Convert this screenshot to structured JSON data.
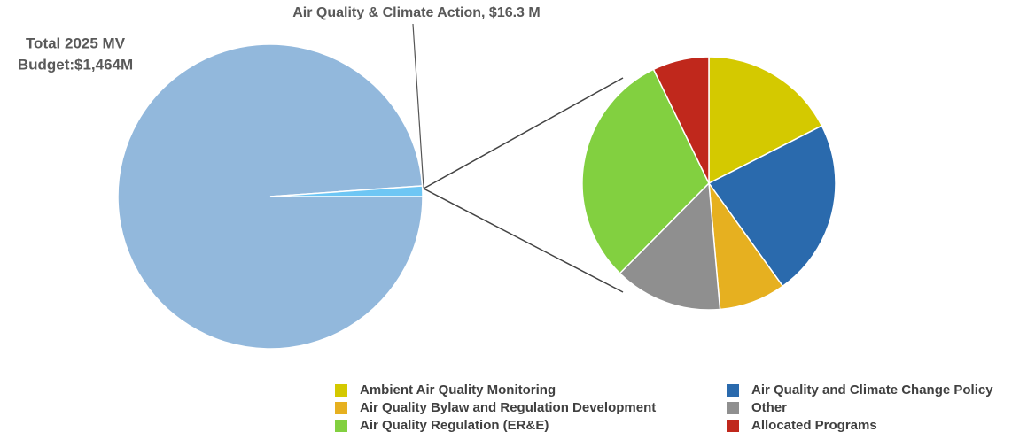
{
  "chart_data": [
    {
      "type": "pie",
      "annotation": [
        "Total 2025 MV",
        "Budget:$1,464M"
      ],
      "categories": [
        null,
        "Air Quality & Climate Action, $16.3 M"
      ],
      "values": [
        1447.7,
        16.3
      ],
      "colors": [
        "#92b8dc",
        "#6ec6f4"
      ]
    },
    {
      "type": "pie",
      "series": [
        {
          "name": "Ambient Air Quality Monitoring",
          "color": "#d4c900",
          "value": 17.5
        },
        {
          "name": "Air Quality and Climate Change Policy",
          "color": "#2a6aad",
          "value": 22.6
        },
        {
          "name": "Air Quality Bylaw and Regulation Development",
          "color": "#e6b020",
          "value": 8.5
        },
        {
          "name": "Other",
          "color": "#8f8f8f",
          "value": 13.8
        },
        {
          "name": "Air Quality Regulation (ER&E)",
          "color": "#82d040",
          "value": 30.4
        },
        {
          "name": "Allocated Programs",
          "color": "#c0281c",
          "value": 7.2
        }
      ],
      "legend": "bottom-right"
    }
  ]
}
